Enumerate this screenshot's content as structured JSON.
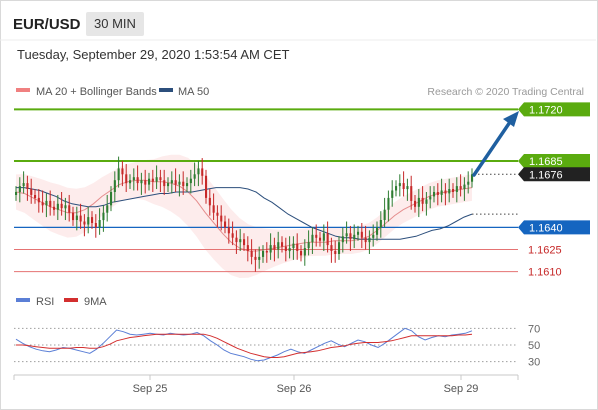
{
  "header": {
    "symbol": "EUR/USD",
    "timeframe": "30 MIN",
    "datetime": "Tuesday, September 29, 2020 1:53:54 AM CET"
  },
  "legend": {
    "bollinger_label": "MA 20 + Bollinger Bands",
    "ma50_label": "MA 50",
    "credit": "Research © 2020 Trading Central",
    "bollinger_color": "#f08080",
    "ma50_color": "#2c4f7c"
  },
  "colors": {
    "up": "#2e7d32",
    "down": "#c62828",
    "resistance": "#5aab0f",
    "pivot": "#1565c0",
    "support": "#e57373",
    "last_price_bg": "#222222",
    "arrow": "#1f5fa0",
    "rsi": "#5b7fd6",
    "rsi_ma": "#d32f2f"
  },
  "price_levels": [
    {
      "value": "1.1720",
      "kind": "resistance"
    },
    {
      "value": "1.1685",
      "kind": "resistance"
    },
    {
      "value": "1.1676",
      "kind": "last"
    },
    {
      "value": "1.1640",
      "kind": "pivot"
    },
    {
      "value": "1.1625",
      "kind": "support"
    },
    {
      "value": "1.1610",
      "kind": "support"
    }
  ],
  "x_axis": {
    "ticks": [
      "Sep 25",
      "Sep 26",
      "Sep 29"
    ]
  },
  "rsi_panel": {
    "rsi_label": "RSI",
    "ma_label": "9MA",
    "levels": [
      "70",
      "50",
      "30"
    ]
  },
  "chart_data": {
    "type": "candlestick",
    "instrument": "EUR/USD",
    "interval": "30 MIN",
    "series": [
      {
        "name": "EUR/USD",
        "closes": [
          1.1664,
          1.1668,
          1.167,
          1.1666,
          1.1662,
          1.166,
          1.1657,
          1.1655,
          1.1658,
          1.1654,
          1.1652,
          1.1656,
          1.1653,
          1.1655,
          1.165,
          1.1645,
          1.1648,
          1.1644,
          1.1642,
          1.1647,
          1.1643,
          1.164,
          1.1645,
          1.165,
          1.1655,
          1.1664,
          1.1672,
          1.168,
          1.1676,
          1.167,
          1.1672,
          1.1674,
          1.167,
          1.1672,
          1.1669,
          1.1673,
          1.1671,
          1.1674,
          1.1672,
          1.1668,
          1.167,
          1.1672,
          1.1669,
          1.1671,
          1.1668,
          1.167,
          1.1673,
          1.1676,
          1.168,
          1.1675,
          1.166,
          1.1655,
          1.165,
          1.1648,
          1.1644,
          1.164,
          1.1636,
          1.1633,
          1.163,
          1.1632,
          1.1628,
          1.1624,
          1.162,
          1.1618,
          1.162,
          1.1624,
          1.1623,
          1.1628,
          1.1625,
          1.163,
          1.1627,
          1.1624,
          1.1626,
          1.1629,
          1.1624,
          1.1621,
          1.1626,
          1.163,
          1.1635,
          1.1633,
          1.1631,
          1.1636,
          1.1628,
          1.1624,
          1.1622,
          1.163,
          1.1634,
          1.1636,
          1.1632,
          1.1635,
          1.1637,
          1.1633,
          1.163,
          1.1633,
          1.1635,
          1.164,
          1.1645,
          1.1652,
          1.166,
          1.1665,
          1.1668,
          1.167,
          1.1666,
          1.1668,
          1.1658,
          1.1654,
          1.166,
          1.1656,
          1.1659,
          1.1661,
          1.1664,
          1.1662,
          1.1665,
          1.1663,
          1.1666,
          1.1664,
          1.1668,
          1.1666,
          1.1669,
          1.1671,
          1.1676
        ]
      },
      {
        "name": "MA 50",
        "values": [
          1.1667,
          1.1667,
          1.1666,
          1.1665,
          1.1663,
          1.1661,
          1.1658,
          1.1656,
          1.1655,
          1.1654,
          1.1654,
          1.1655,
          1.1657,
          1.1658,
          1.1659,
          1.166,
          1.1661,
          1.1662,
          1.1663,
          1.1663,
          1.1664,
          1.1664,
          1.1664,
          1.1665,
          1.1666,
          1.1667,
          1.1667,
          1.1667,
          1.1667,
          1.1666,
          1.1664,
          1.166,
          1.1657,
          1.1653,
          1.1649,
          1.1646,
          1.1643,
          1.164,
          1.1638,
          1.1636,
          1.1634,
          1.1633,
          1.1633,
          1.1632,
          1.1632,
          1.1632,
          1.1632,
          1.1632,
          1.1632,
          1.1633,
          1.1634,
          1.1636,
          1.1638,
          1.1639,
          1.1641,
          1.1644,
          1.1647,
          1.1649
        ]
      },
      {
        "name": "MA 20",
        "values": [
          1.1664,
          1.1663,
          1.166,
          1.1657,
          1.1654,
          1.1652,
          1.165,
          1.165,
          1.1652,
          1.1656,
          1.1661,
          1.1665,
          1.1669,
          1.1671,
          1.1672,
          1.1672,
          1.1671,
          1.1671,
          1.167,
          1.1668,
          1.1664,
          1.1658,
          1.165,
          1.1643,
          1.1636,
          1.163,
          1.1626,
          1.1624,
          1.1624,
          1.1625,
          1.1626,
          1.1627,
          1.1628,
          1.1629,
          1.163,
          1.163,
          1.163,
          1.1631,
          1.1631,
          1.1631,
          1.1632,
          1.1634,
          1.1638,
          1.1643,
          1.1648,
          1.1652,
          1.1655,
          1.1658,
          1.1661,
          1.1663,
          1.1664,
          1.1665,
          1.1666,
          1.1667
        ]
      }
    ],
    "rsi": [
      57,
      52,
      48,
      45,
      43,
      42,
      44,
      47,
      46,
      44,
      42,
      40,
      45,
      52,
      60,
      68,
      66,
      63,
      62,
      63,
      64,
      63,
      62,
      64,
      63,
      62,
      63,
      65,
      61,
      55,
      50,
      44,
      40,
      38,
      36,
      33,
      31,
      32,
      35,
      38,
      42,
      45,
      42,
      40,
      44,
      48,
      52,
      55,
      51,
      48,
      52,
      56,
      54,
      50,
      47,
      52,
      58,
      64,
      70,
      67,
      60,
      56,
      59,
      61,
      60,
      62,
      63,
      64,
      67
    ],
    "rsi_ma": [
      50,
      50,
      49,
      48,
      47,
      46,
      46,
      46,
      46,
      47,
      47,
      46,
      46,
      48,
      51,
      55,
      57,
      59,
      60,
      61,
      62,
      63,
      63,
      63,
      63,
      63,
      63,
      63,
      63,
      61,
      58,
      54,
      50,
      46,
      43,
      40,
      38,
      36,
      35,
      35,
      36,
      38,
      40,
      41,
      42,
      43,
      45,
      47,
      48,
      49,
      51,
      52,
      53,
      53,
      53,
      54,
      55,
      57,
      59,
      61,
      61,
      61,
      61,
      61,
      61,
      61,
      62,
      62,
      63
    ],
    "levels": [
      1.172,
      1.1685,
      1.164,
      1.1625,
      1.161
    ],
    "last_price": 1.1676,
    "ylim": [
      1.1603,
      1.1725
    ],
    "rsi_ylim": [
      20,
      80
    ],
    "grid": false,
    "legend_position": "top-left"
  }
}
